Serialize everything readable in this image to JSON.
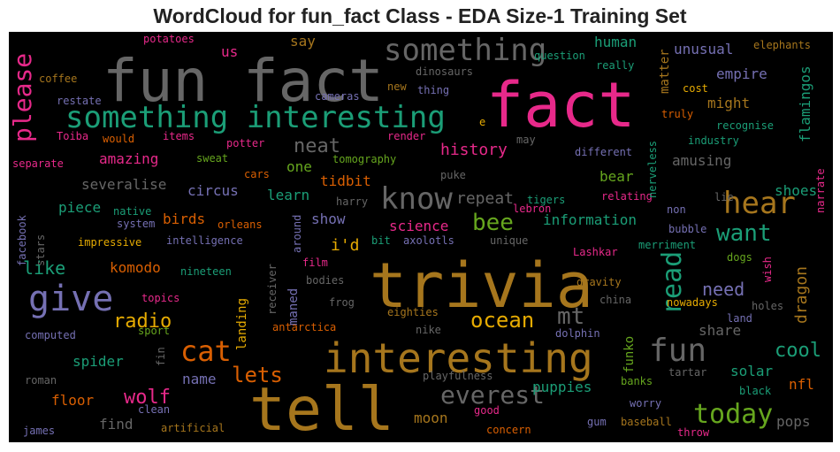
{
  "title": "WordCloud for fun_fact Class - EDA Size-1 Training Set",
  "chart_data": {
    "type": "wordcloud",
    "title": "WordCloud for fun_fact Class - EDA Size-1 Training Set",
    "background": "#000000",
    "palette": {
      "green": "#1b9e77",
      "orange": "#d95f02",
      "purple": "#7570b3",
      "pink": "#e7298a",
      "lime": "#66a61e",
      "gold": "#e6ab02",
      "brown": "#a6761d",
      "gray": "#666666"
    },
    "words": [
      {
        "text": "fun fact",
        "size": 66,
        "color": "gray"
      },
      {
        "text": "fact",
        "size": 70,
        "color": "pink"
      },
      {
        "text": "trivia",
        "size": 70,
        "color": "brown"
      },
      {
        "text": "tell",
        "size": 68,
        "color": "brown"
      },
      {
        "text": "interesting",
        "size": 46,
        "color": "brown"
      },
      {
        "text": "something interesting",
        "size": 34,
        "color": "green"
      },
      {
        "text": "something",
        "size": 34,
        "color": "gray"
      },
      {
        "text": "give",
        "size": 40,
        "color": "purple"
      },
      {
        "text": "please",
        "size": 28,
        "color": "pink"
      },
      {
        "text": "know",
        "size": 34,
        "color": "gray"
      },
      {
        "text": "hear",
        "size": 34,
        "color": "brown"
      },
      {
        "text": "want",
        "size": 26,
        "color": "green"
      },
      {
        "text": "read",
        "size": 30,
        "color": "green"
      },
      {
        "text": "fun",
        "size": 36,
        "color": "gray"
      },
      {
        "text": "cat",
        "size": 32,
        "color": "orange"
      },
      {
        "text": "everest",
        "size": 28,
        "color": "gray"
      },
      {
        "text": "today",
        "size": 30,
        "color": "lime"
      },
      {
        "text": "ocean",
        "size": 24,
        "color": "gold"
      },
      {
        "text": "bee",
        "size": 26,
        "color": "lime"
      },
      {
        "text": "mt",
        "size": 26,
        "color": "gray"
      },
      {
        "text": "lets",
        "size": 24,
        "color": "orange"
      },
      {
        "text": "wolf",
        "size": 22,
        "color": "pink"
      },
      {
        "text": "radio",
        "size": 22,
        "color": "gold"
      },
      {
        "text": "neat",
        "size": 22,
        "color": "gray"
      },
      {
        "text": "cool",
        "size": 22,
        "color": "green"
      },
      {
        "text": "dragon",
        "size": 18,
        "color": "brown"
      },
      {
        "text": "flamingos",
        "size": 16,
        "color": "green"
      },
      {
        "text": "need",
        "size": 20,
        "color": "purple"
      },
      {
        "text": "like",
        "size": 20,
        "color": "green"
      },
      {
        "text": "history",
        "size": 18,
        "color": "pink"
      },
      {
        "text": "repeat",
        "size": 18,
        "color": "gray"
      },
      {
        "text": "science",
        "size": 16,
        "color": "pink"
      },
      {
        "text": "information",
        "size": 16,
        "color": "green"
      },
      {
        "text": "human",
        "size": 16,
        "color": "green"
      },
      {
        "text": "unusual",
        "size": 16,
        "color": "purple"
      },
      {
        "text": "empire",
        "size": 16,
        "color": "purple"
      },
      {
        "text": "might",
        "size": 16,
        "color": "brown"
      },
      {
        "text": "matter",
        "size": 14,
        "color": "brown"
      },
      {
        "text": "amazing",
        "size": 16,
        "color": "pink"
      },
      {
        "text": "amusing",
        "size": 16,
        "color": "gray"
      },
      {
        "text": "shoes",
        "size": 16,
        "color": "green"
      },
      {
        "text": "bear",
        "size": 16,
        "color": "lime"
      },
      {
        "text": "circus",
        "size": 16,
        "color": "purple"
      },
      {
        "text": "severalise",
        "size": 16,
        "color": "gray"
      },
      {
        "text": "learn",
        "size": 16,
        "color": "green"
      },
      {
        "text": "tidbit",
        "size": 16,
        "color": "orange"
      },
      {
        "text": "piece",
        "size": 16,
        "color": "green"
      },
      {
        "text": "birds",
        "size": 16,
        "color": "orange"
      },
      {
        "text": "show",
        "size": 16,
        "color": "purple"
      },
      {
        "text": "i'd",
        "size": 18,
        "color": "gold"
      },
      {
        "text": "komodo",
        "size": 16,
        "color": "orange"
      },
      {
        "text": "spider",
        "size": 16,
        "color": "green"
      },
      {
        "text": "floor",
        "size": 16,
        "color": "orange"
      },
      {
        "text": "name",
        "size": 16,
        "color": "purple"
      },
      {
        "text": "share",
        "size": 16,
        "color": "gray"
      },
      {
        "text": "solar",
        "size": 16,
        "color": "green"
      },
      {
        "text": "nfl",
        "size": 16,
        "color": "orange"
      },
      {
        "text": "pops",
        "size": 16,
        "color": "gray"
      },
      {
        "text": "puppies",
        "size": 16,
        "color": "green"
      },
      {
        "text": "moon",
        "size": 16,
        "color": "brown"
      },
      {
        "text": "find",
        "size": 16,
        "color": "gray"
      },
      {
        "text": "funko",
        "size": 14,
        "color": "lime"
      },
      {
        "text": "landing",
        "size": 14,
        "color": "gold"
      },
      {
        "text": "maned",
        "size": 14,
        "color": "purple"
      },
      {
        "text": "one",
        "size": 16,
        "color": "lime"
      },
      {
        "text": "say",
        "size": 16,
        "color": "brown"
      },
      {
        "text": "us",
        "size": 16,
        "color": "pink"
      },
      {
        "text": "potatoes",
        "size": 12,
        "color": "pink"
      },
      {
        "text": "coffee",
        "size": 12,
        "color": "brown"
      },
      {
        "text": "restate",
        "size": 12,
        "color": "purple"
      },
      {
        "text": "Toiba",
        "size": 12,
        "color": "pink"
      },
      {
        "text": "would",
        "size": 12,
        "color": "orange"
      },
      {
        "text": "items",
        "size": 12,
        "color": "pink"
      },
      {
        "text": "separate",
        "size": 12,
        "color": "pink"
      },
      {
        "text": "sweat",
        "size": 12,
        "color": "lime"
      },
      {
        "text": "potter",
        "size": 12,
        "color": "pink"
      },
      {
        "text": "cars",
        "size": 12,
        "color": "orange"
      },
      {
        "text": "render",
        "size": 12,
        "color": "pink"
      },
      {
        "text": "tomography",
        "size": 12,
        "color": "lime"
      },
      {
        "text": "cameras",
        "size": 12,
        "color": "purple"
      },
      {
        "text": "question",
        "size": 12,
        "color": "green"
      },
      {
        "text": "dinosaurs",
        "size": 12,
        "color": "gray"
      },
      {
        "text": "thing",
        "size": 12,
        "color": "purple"
      },
      {
        "text": "new",
        "size": 12,
        "color": "brown"
      },
      {
        "text": "really",
        "size": 12,
        "color": "green"
      },
      {
        "text": "elephants",
        "size": 12,
        "color": "brown"
      },
      {
        "text": "cost",
        "size": 12,
        "color": "gold"
      },
      {
        "text": "truly",
        "size": 12,
        "color": "orange"
      },
      {
        "text": "recognise",
        "size": 12,
        "color": "green"
      },
      {
        "text": "industry",
        "size": 12,
        "color": "green"
      },
      {
        "text": "may",
        "size": 12,
        "color": "gray"
      },
      {
        "text": "different",
        "size": 12,
        "color": "purple"
      },
      {
        "text": "puke",
        "size": 12,
        "color": "gray"
      },
      {
        "text": "lebron",
        "size": 12,
        "color": "pink"
      },
      {
        "text": "tigers",
        "size": 12,
        "color": "green"
      },
      {
        "text": "relating",
        "size": 12,
        "color": "pink"
      },
      {
        "text": "lie",
        "size": 12,
        "color": "gray"
      },
      {
        "text": "non",
        "size": 12,
        "color": "purple"
      },
      {
        "text": "bubble",
        "size": 12,
        "color": "purple"
      },
      {
        "text": "merriment",
        "size": 12,
        "color": "green"
      },
      {
        "text": "nerveless",
        "size": 12,
        "color": "green"
      },
      {
        "text": "narrate",
        "size": 12,
        "color": "pink"
      },
      {
        "text": "facebook",
        "size": 12,
        "color": "purple"
      },
      {
        "text": "stars",
        "size": 12,
        "color": "gray"
      },
      {
        "text": "native",
        "size": 12,
        "color": "green"
      },
      {
        "text": "system",
        "size": 12,
        "color": "purple"
      },
      {
        "text": "harry",
        "size": 12,
        "color": "gray"
      },
      {
        "text": "orleans",
        "size": 12,
        "color": "orange"
      },
      {
        "text": "around",
        "size": 12,
        "color": "purple"
      },
      {
        "text": "impressive",
        "size": 12,
        "color": "gold"
      },
      {
        "text": "intelligence",
        "size": 12,
        "color": "purple"
      },
      {
        "text": "bit",
        "size": 12,
        "color": "green"
      },
      {
        "text": "axolotls",
        "size": 12,
        "color": "purple"
      },
      {
        "text": "unique",
        "size": 12,
        "color": "gray"
      },
      {
        "text": "receiver",
        "size": 12,
        "color": "gray"
      },
      {
        "text": "Lashkar",
        "size": 12,
        "color": "pink"
      },
      {
        "text": "dogs",
        "size": 12,
        "color": "lime"
      },
      {
        "text": "nineteen",
        "size": 12,
        "color": "green"
      },
      {
        "text": "film",
        "size": 12,
        "color": "pink"
      },
      {
        "text": "bodies",
        "size": 12,
        "color": "gray"
      },
      {
        "text": "topics",
        "size": 12,
        "color": "pink"
      },
      {
        "text": "gravity",
        "size": 12,
        "color": "brown"
      },
      {
        "text": "wish",
        "size": 12,
        "color": "pink"
      },
      {
        "text": "frog",
        "size": 12,
        "color": "gray"
      },
      {
        "text": "china",
        "size": 12,
        "color": "gray"
      },
      {
        "text": "nowadays",
        "size": 12,
        "color": "gold"
      },
      {
        "text": "holes",
        "size": 12,
        "color": "gray"
      },
      {
        "text": "land",
        "size": 12,
        "color": "purple"
      },
      {
        "text": "eighties",
        "size": 12,
        "color": "brown"
      },
      {
        "text": "sport",
        "size": 12,
        "color": "lime"
      },
      {
        "text": "computed",
        "size": 12,
        "color": "purple"
      },
      {
        "text": "antarctica",
        "size": 12,
        "color": "orange"
      },
      {
        "text": "nike",
        "size": 12,
        "color": "gray"
      },
      {
        "text": "dolphin",
        "size": 12,
        "color": "purple"
      },
      {
        "text": "fin",
        "size": 12,
        "color": "gray"
      },
      {
        "text": "tartar",
        "size": 12,
        "color": "gray"
      },
      {
        "text": "roman",
        "size": 12,
        "color": "gray"
      },
      {
        "text": "playfulness",
        "size": 12,
        "color": "gray"
      },
      {
        "text": "banks",
        "size": 12,
        "color": "lime"
      },
      {
        "text": "black",
        "size": 12,
        "color": "green"
      },
      {
        "text": "clean",
        "size": 12,
        "color": "purple"
      },
      {
        "text": "worry",
        "size": 12,
        "color": "purple"
      },
      {
        "text": "good",
        "size": 12,
        "color": "pink"
      },
      {
        "text": "james",
        "size": 12,
        "color": "purple"
      },
      {
        "text": "artificial",
        "size": 12,
        "color": "brown"
      },
      {
        "text": "concern",
        "size": 12,
        "color": "orange"
      },
      {
        "text": "gum",
        "size": 12,
        "color": "purple"
      },
      {
        "text": "baseball",
        "size": 12,
        "color": "brown"
      },
      {
        "text": "throw",
        "size": 12,
        "color": "pink"
      },
      {
        "text": "e",
        "size": 12,
        "color": "gold"
      }
    ]
  }
}
